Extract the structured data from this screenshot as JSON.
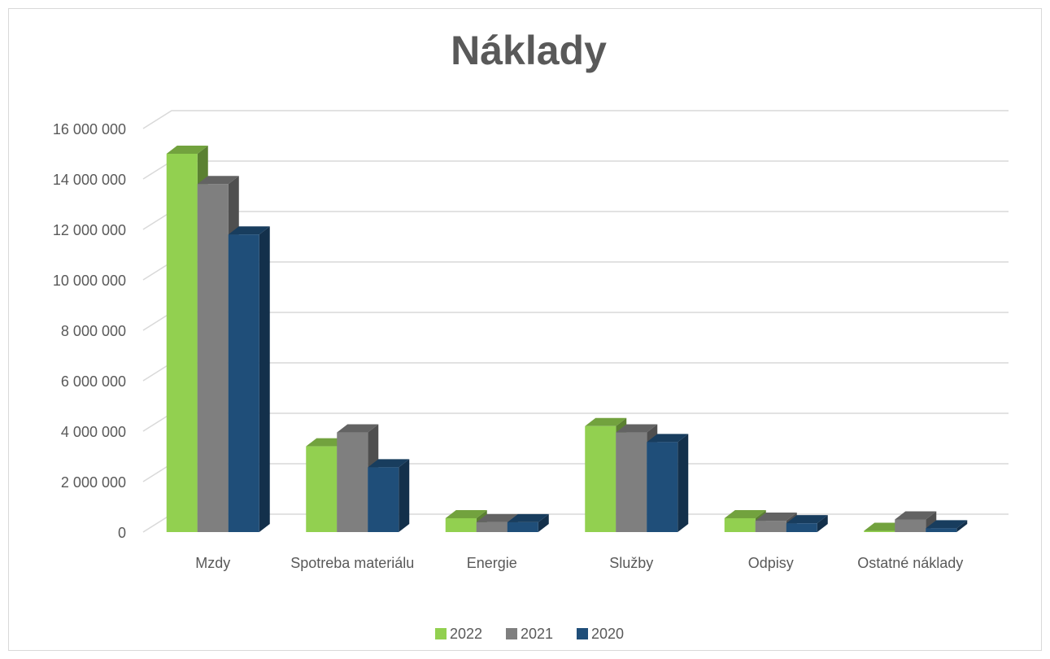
{
  "chart_data": {
    "type": "bar3d",
    "title": "Náklady",
    "categories": [
      "Mzdy",
      "Spotreba materiálu",
      "Energie",
      "Služby",
      "Odpisy",
      "Ostatné náklady"
    ],
    "series": [
      {
        "name": "2022",
        "color": "#92d050",
        "values": [
          15000000,
          3400000,
          550000,
          4200000,
          550000,
          50000
        ]
      },
      {
        "name": "2021",
        "color": "#7f7f7f",
        "values": [
          13800000,
          3950000,
          390000,
          3950000,
          450000,
          500000
        ]
      },
      {
        "name": "2020",
        "color": "#1f4e79",
        "values": [
          11800000,
          2570000,
          390000,
          3570000,
          350000,
          150000
        ]
      }
    ],
    "ylim": [
      0,
      16000000
    ],
    "yticks": [
      0,
      {
        "value": 2000000,
        "label": "2 000 000"
      },
      {
        "value": 4000000,
        "label": "4 000 000"
      },
      {
        "value": 6000000,
        "label": "6 000 000"
      },
      {
        "value": 8000000,
        "label": "8 000 000"
      },
      {
        "value": 10000000,
        "label": "10 000 000"
      },
      {
        "value": 12000000,
        "label": "12 000 000"
      },
      {
        "value": 14000000,
        "label": "14 000 000"
      },
      {
        "value": 16000000,
        "label": "16 000 000"
      }
    ],
    "grid": true,
    "legend": "bottom"
  }
}
